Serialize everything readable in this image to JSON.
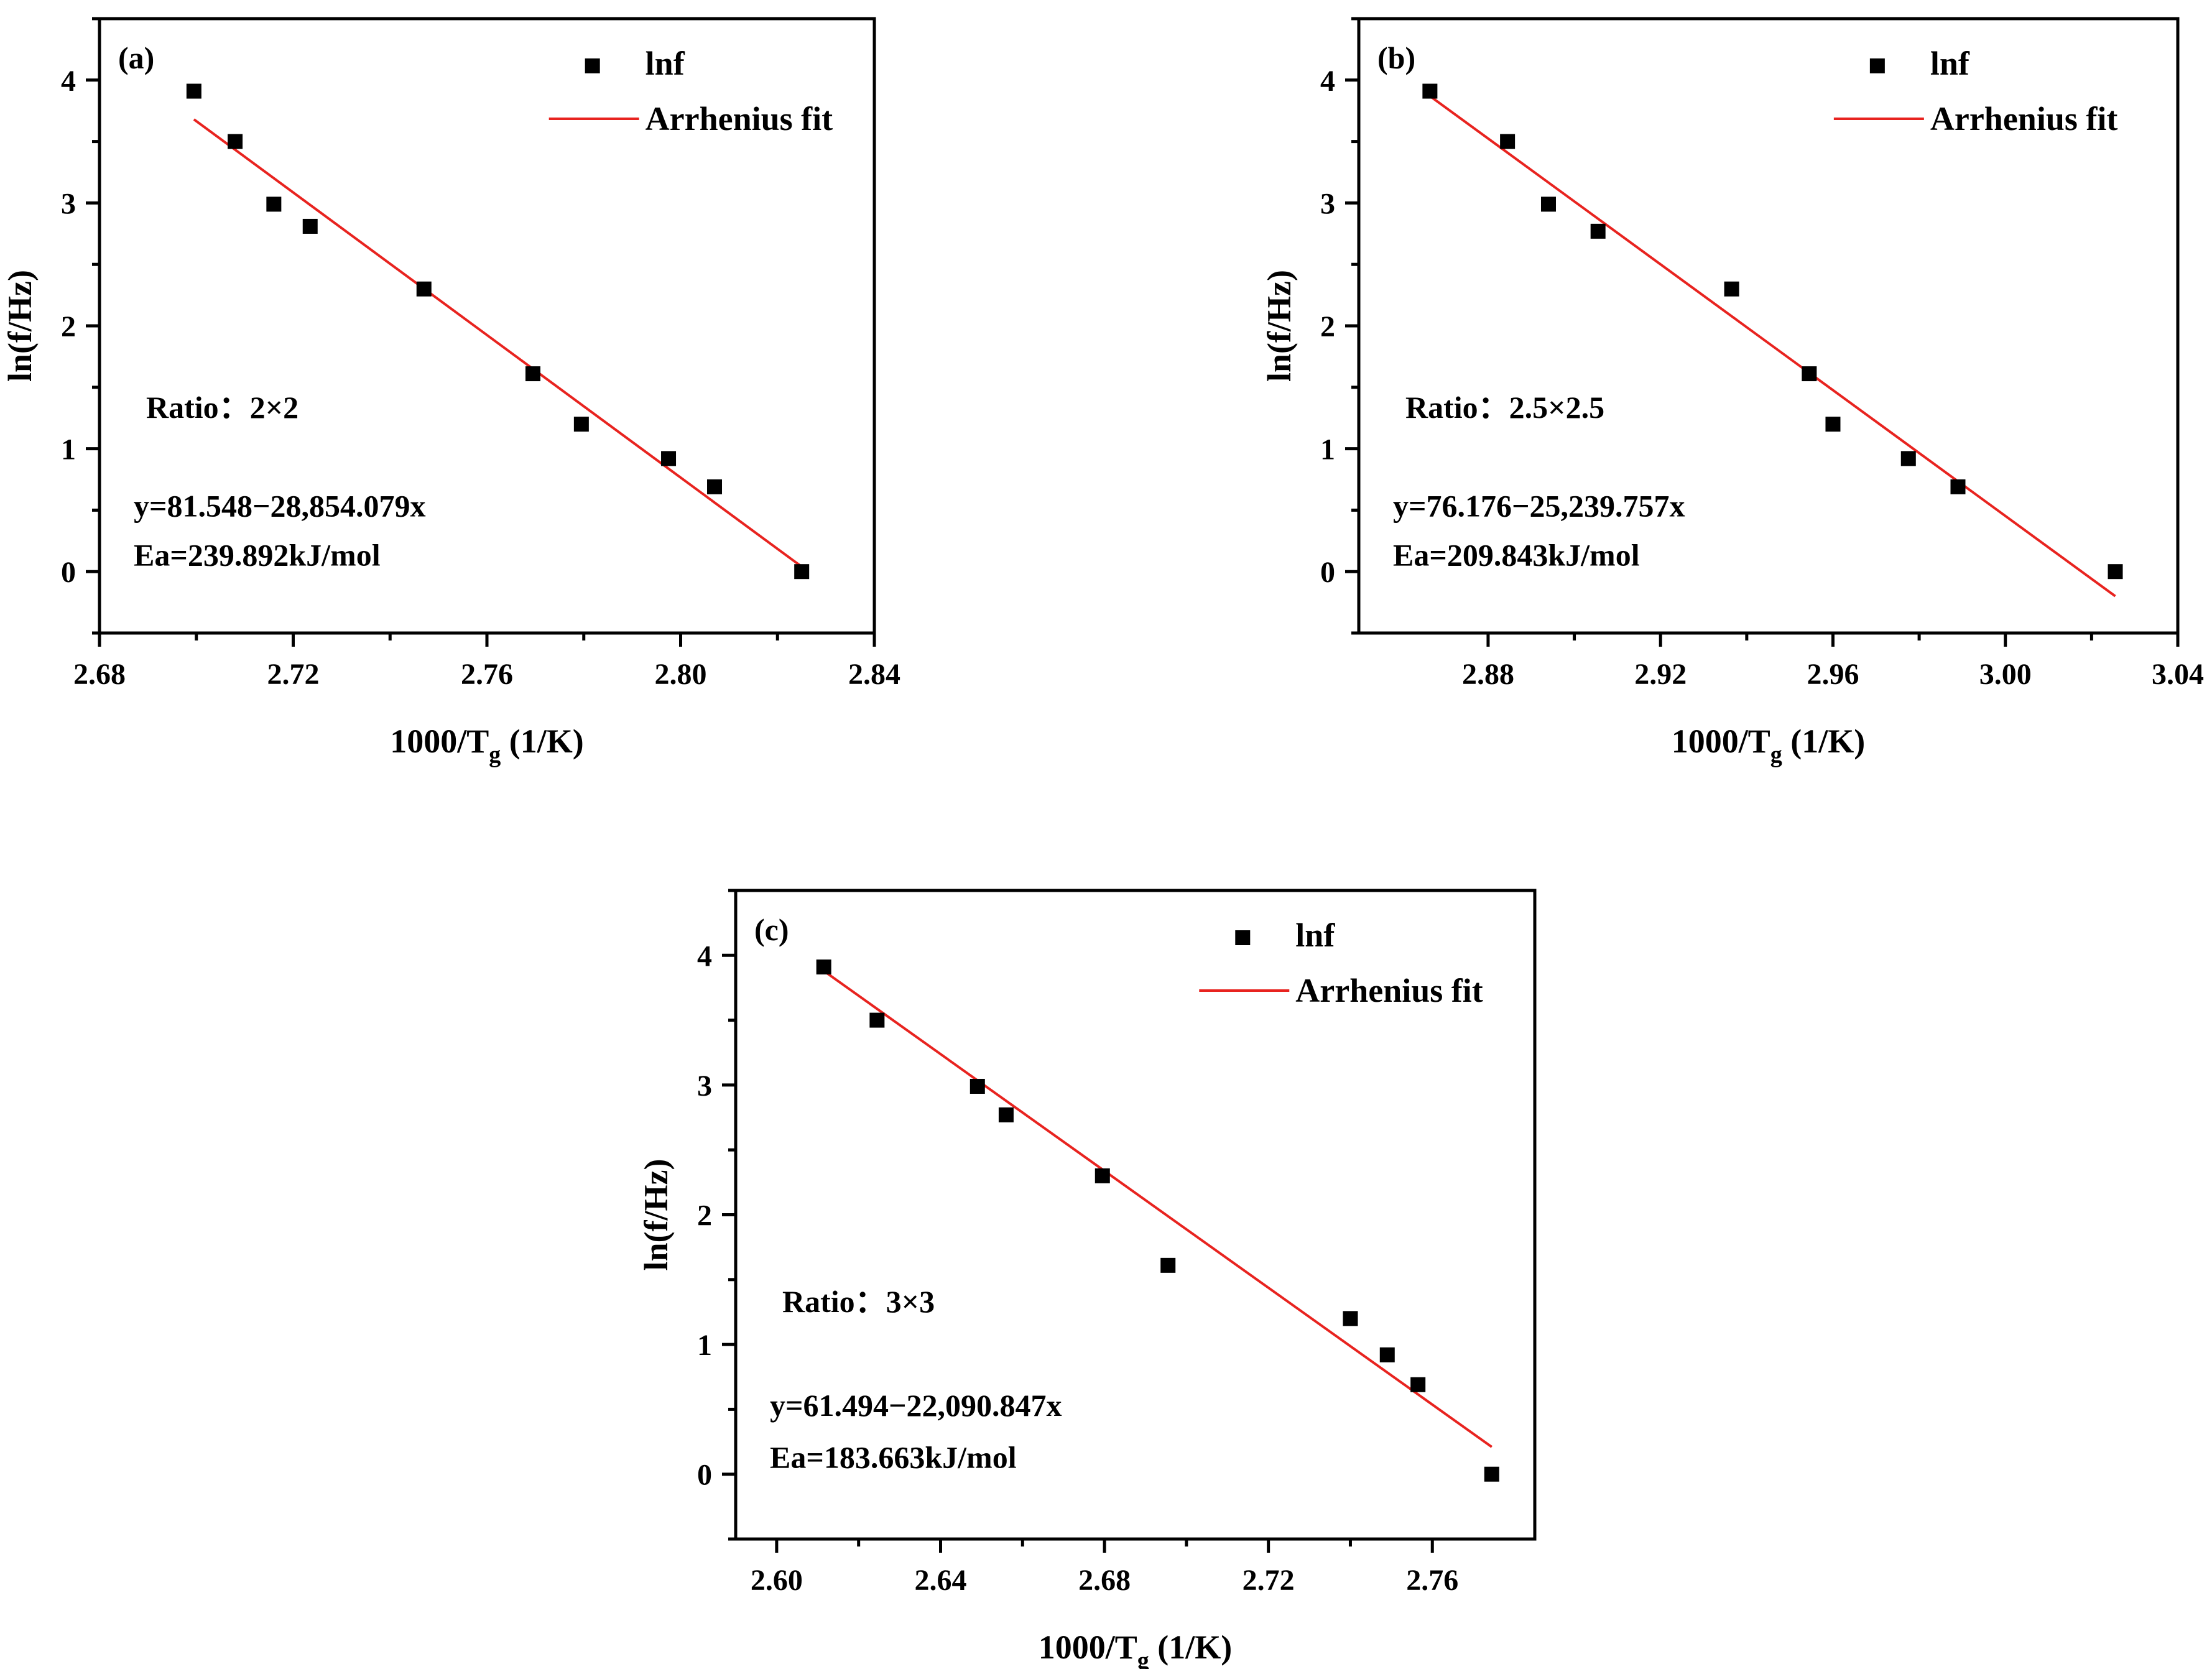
{
  "chart_data": [
    {
      "type": "scatter",
      "panel_label": "(a)",
      "xlabel": "1000/T",
      "xlabel_sub": "g",
      "xlabel_unit": " (1/K)",
      "ylabel": "ln(f/Hz)",
      "xlim": [
        2.68,
        2.84
      ],
      "ylim": [
        -0.5,
        4.5
      ],
      "xticks": [
        "2.68",
        "2.72",
        "2.76",
        "2.80",
        "2.84"
      ],
      "yticks": [
        "0",
        "1",
        "2",
        "3",
        "4"
      ],
      "legend": {
        "points": "lnf",
        "line": "Arrhenius fit",
        "position": "top-right"
      },
      "ratio_text": "Ratio：2×2",
      "equation": "y=81.548−28,854.079x",
      "ea": "Ea=239.892kJ/mol",
      "series": [
        {
          "name": "lnf",
          "x": [
            2.6995,
            2.708,
            2.716,
            2.7235,
            2.747,
            2.7695,
            2.7795,
            2.7975,
            2.807,
            2.825
          ],
          "y": [
            3.91,
            3.5,
            2.99,
            2.81,
            2.3,
            1.61,
            1.2,
            0.92,
            0.69,
            0.0
          ]
        },
        {
          "name": "Arrhenius fit",
          "x": [
            2.6995,
            2.825
          ],
          "y": [
            3.68,
            0.04
          ]
        }
      ]
    },
    {
      "type": "scatter",
      "panel_label": "(b)",
      "xlabel": "1000/T",
      "xlabel_sub": "g",
      "xlabel_unit": " (1/K)",
      "ylabel": "ln(f/Hz)",
      "xlim": [
        2.85,
        3.04
      ],
      "ylim": [
        -0.5,
        4.5
      ],
      "xticks": [
        "2.88",
        "2.92",
        "2.96",
        "3.00",
        "3.04"
      ],
      "yticks": [
        "0",
        "1",
        "2",
        "3",
        "4"
      ],
      "legend": {
        "points": "lnf",
        "line": "Arrhenius fit",
        "position": "top-right"
      },
      "ratio_text": "Ratio：2.5×2.5",
      "equation": "y=76.176−25,239.757x",
      "ea": "Ea=209.843kJ/mol",
      "series": [
        {
          "name": "lnf",
          "x": [
            2.8665,
            2.8845,
            2.894,
            2.9055,
            2.9365,
            2.9545,
            2.96,
            2.9775,
            2.989,
            3.0255
          ],
          "y": [
            3.91,
            3.5,
            2.99,
            2.77,
            2.3,
            1.61,
            1.2,
            0.92,
            0.69,
            0.0
          ]
        },
        {
          "name": "Arrhenius fit",
          "x": [
            2.8665,
            3.0255
          ],
          "y": [
            3.87,
            -0.2
          ]
        }
      ]
    },
    {
      "type": "scatter",
      "panel_label": "(c)",
      "xlabel": "1000/T",
      "xlabel_sub": "g",
      "xlabel_unit": " (1/K)",
      "ylabel": "ln(f/Hz)",
      "xlim": [
        2.59,
        2.785
      ],
      "ylim": [
        -0.5,
        4.5
      ],
      "xticks": [
        "2.60",
        "2.64",
        "2.68",
        "2.72",
        "2.76"
      ],
      "yticks": [
        "0",
        "1",
        "2",
        "3",
        "4"
      ],
      "legend": {
        "points": "lnf",
        "line": "Arrhenius fit",
        "position": "top-right"
      },
      "ratio_text": "Ratio：3×3",
      "equation": "y=61.494−22,090.847x",
      "ea": "Ea=183.663kJ/mol",
      "series": [
        {
          "name": "lnf",
          "x": [
            2.6115,
            2.6245,
            2.649,
            2.656,
            2.6795,
            2.6955,
            2.74,
            2.749,
            2.7565,
            2.7745
          ],
          "y": [
            3.91,
            3.5,
            2.99,
            2.77,
            2.3,
            1.61,
            1.2,
            0.92,
            0.69,
            0.0
          ]
        },
        {
          "name": "Arrhenius fit",
          "x": [
            2.6115,
            2.7745
          ],
          "y": [
            3.88,
            0.21
          ]
        }
      ]
    }
  ]
}
